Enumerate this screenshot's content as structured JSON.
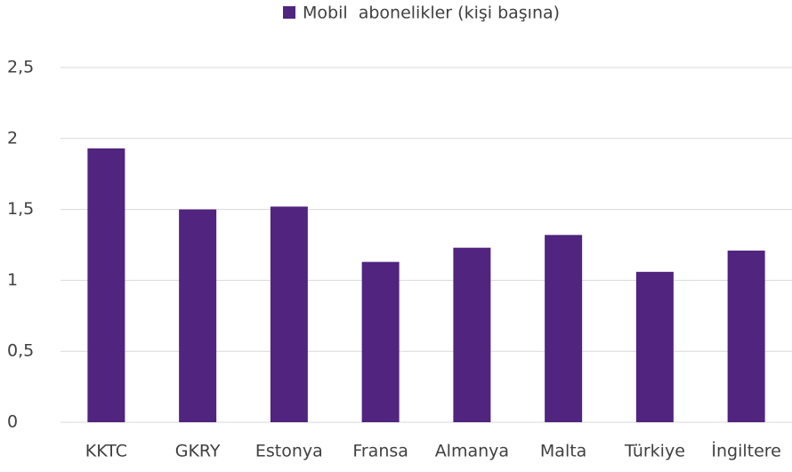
{
  "chart_data": {
    "type": "bar",
    "categories": [
      "KKTC",
      "GKRY",
      "Estonya",
      "Fransa",
      "Almanya",
      "Malta",
      "Türkiye",
      "İngiltere"
    ],
    "series": [
      {
        "name": "Mobil  abonelikler (kişi başına)",
        "color": "#51247f",
        "values": [
          1.93,
          1.5,
          1.52,
          1.13,
          1.23,
          1.32,
          1.06,
          1.21
        ]
      }
    ],
    "ylim": [
      0,
      2.5
    ],
    "yticks": [
      0,
      {
        "value": 0.5,
        "label": "0,5"
      },
      1,
      {
        "value": 1.5,
        "label": "1,5"
      },
      2,
      {
        "value": 2.5,
        "label": "2,5"
      }
    ],
    "grid": true,
    "legend": "top"
  }
}
